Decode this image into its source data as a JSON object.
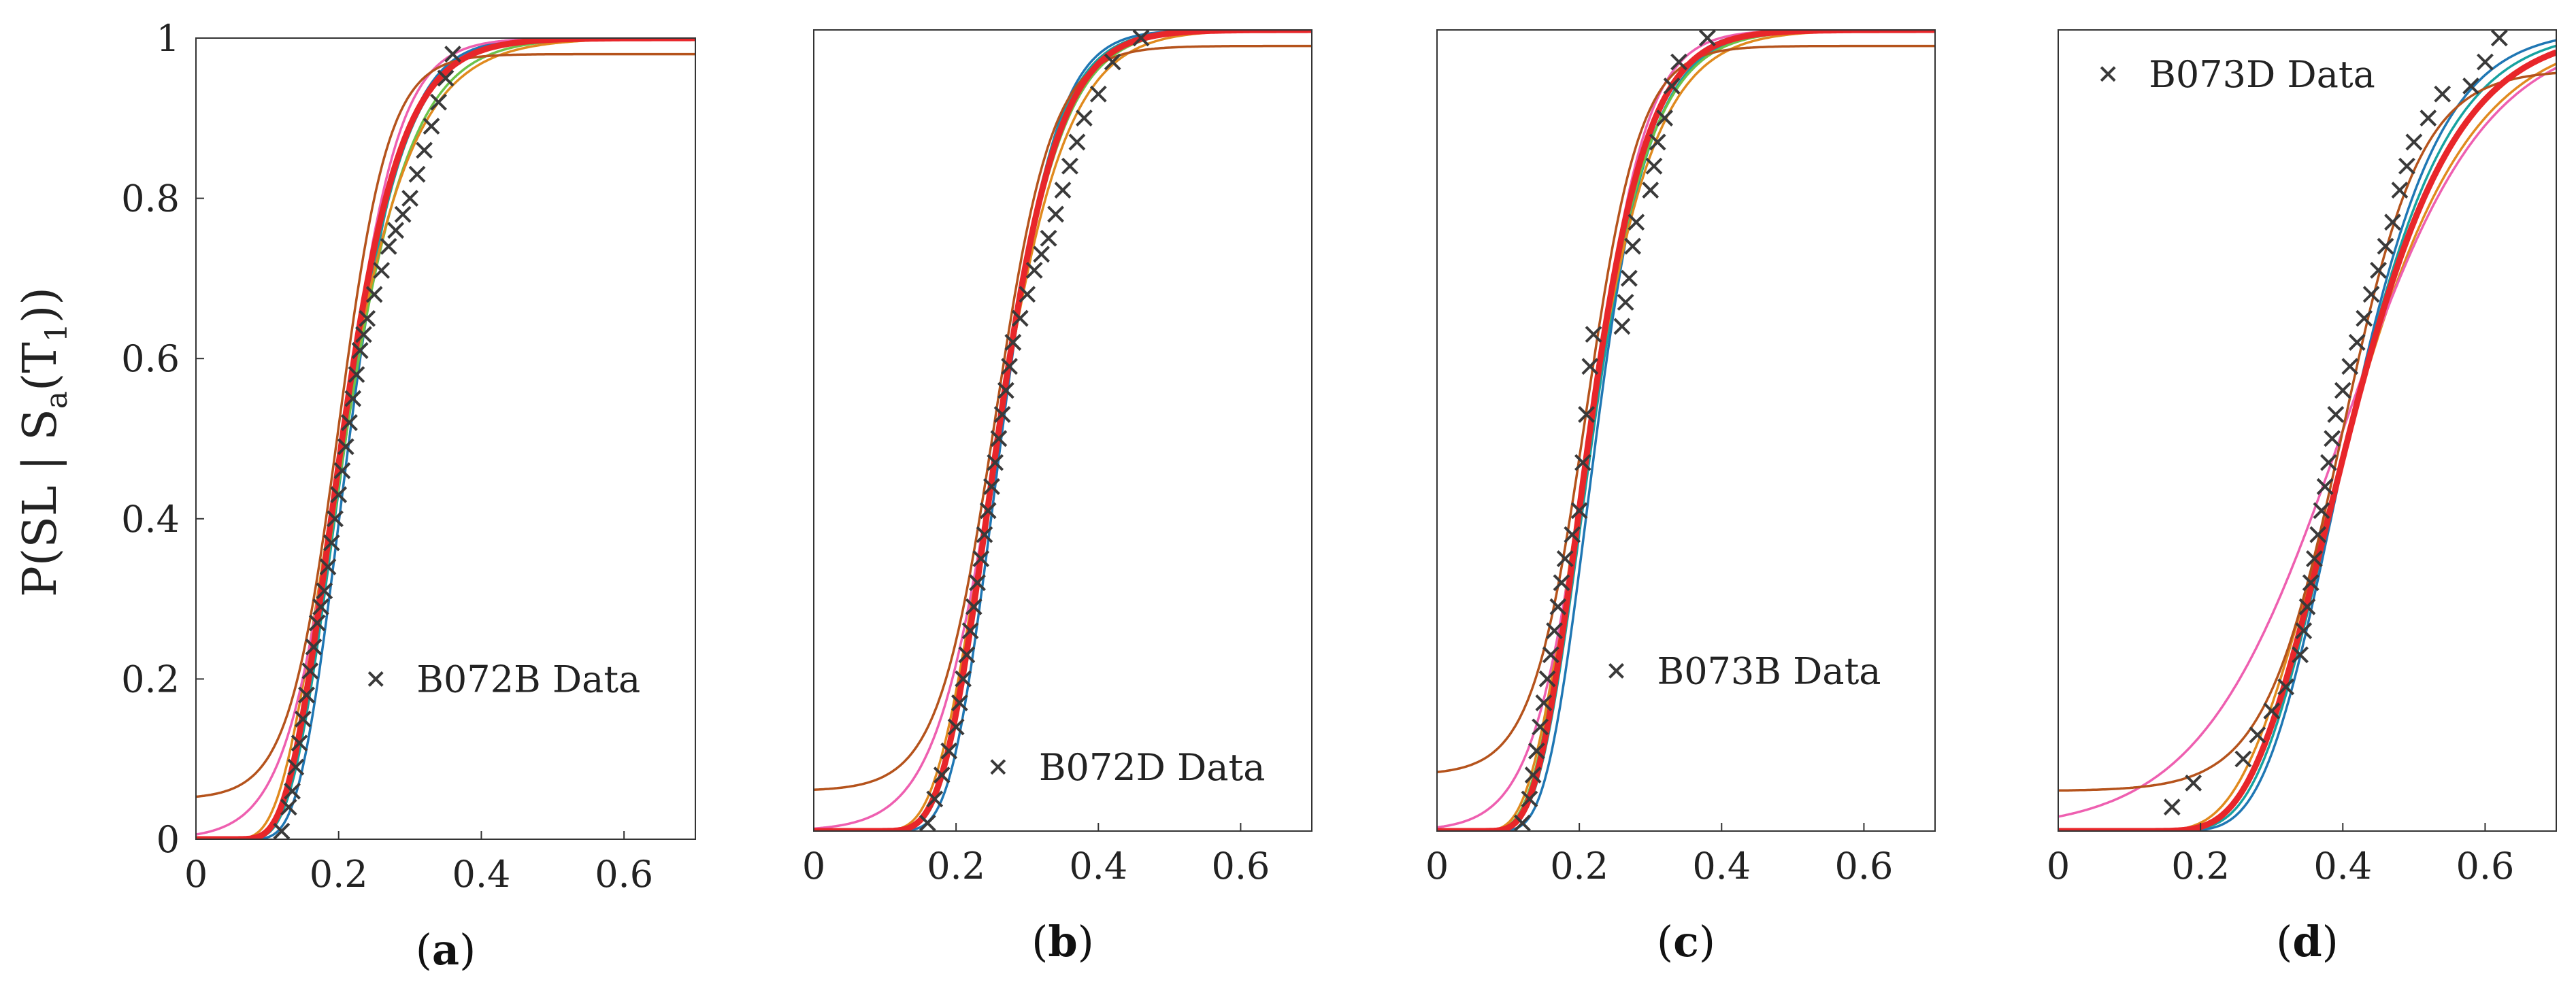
{
  "y_axis_label": "P(SL | S",
  "y_axis_label_sub": "a",
  "y_axis_label_mid": "(T",
  "y_axis_label_sub2": "1",
  "y_axis_label_end": "))",
  "colors": {
    "data_marker": "#3a3a3a",
    "curve_blue": "#1f77b4",
    "curve_teal": "#17a2a0",
    "curve_green": "#6cc24a",
    "curve_orange": "#e08a1e",
    "curve_pink": "#ee5fb0",
    "curve_brown": "#b5531c",
    "curve_red": "#e8262a"
  },
  "chart_data": [
    {
      "panel": "a",
      "panel_label": "(a)",
      "type": "line",
      "legend_label": "B072B Data",
      "legend_position": "center-right",
      "x_ticks": [
        "0",
        "0.2",
        "0.4",
        "0.6"
      ],
      "y_ticks": [
        "0",
        "0.2",
        "0.4",
        "0.6",
        "0.8",
        "1"
      ],
      "xlim": [
        0,
        0.7
      ],
      "ylim": [
        0,
        1
      ],
      "data_points": {
        "x": [
          0.12,
          0.13,
          0.135,
          0.14,
          0.145,
          0.15,
          0.155,
          0.16,
          0.165,
          0.17,
          0.175,
          0.18,
          0.185,
          0.19,
          0.195,
          0.2,
          0.205,
          0.21,
          0.215,
          0.22,
          0.225,
          0.23,
          0.235,
          0.24,
          0.25,
          0.26,
          0.27,
          0.28,
          0.29,
          0.3,
          0.31,
          0.32,
          0.33,
          0.34,
          0.35,
          0.36
        ],
        "y": [
          0.01,
          0.04,
          0.06,
          0.09,
          0.12,
          0.15,
          0.18,
          0.21,
          0.24,
          0.27,
          0.29,
          0.31,
          0.34,
          0.37,
          0.4,
          0.43,
          0.46,
          0.49,
          0.52,
          0.55,
          0.58,
          0.61,
          0.63,
          0.65,
          0.68,
          0.71,
          0.74,
          0.76,
          0.78,
          0.8,
          0.83,
          0.86,
          0.89,
          0.92,
          0.95,
          0.98
        ]
      },
      "fits": [
        {
          "color_key": "curve_blue",
          "kind": "lognormal",
          "median": 0.215,
          "beta": 0.27
        },
        {
          "color_key": "curve_teal",
          "kind": "lognormal",
          "median": 0.21,
          "beta": 0.3
        },
        {
          "color_key": "curve_green",
          "kind": "lognormal",
          "median": 0.21,
          "beta": 0.33
        },
        {
          "color_key": "curve_orange",
          "kind": "lognormal",
          "median": 0.205,
          "beta": 0.36
        },
        {
          "color_key": "curve_pink",
          "kind": "logistic",
          "median": 0.205,
          "scale": 0.04
        },
        {
          "color_key": "curve_brown",
          "kind": "logistic",
          "median": 0.2,
          "scale": 0.035,
          "floor": 0.05,
          "ceil": 0.98
        },
        {
          "color_key": "curve_red",
          "kind": "lognormal",
          "median": 0.205,
          "beta": 0.31,
          "width": 9
        }
      ]
    },
    {
      "panel": "b",
      "panel_label": "(b)",
      "type": "line",
      "legend_label": "B072D Data",
      "legend_position": "bottom-right",
      "x_ticks": [
        "0",
        "0.2",
        "0.4",
        "0.6"
      ],
      "y_ticks": [],
      "xlim": [
        0,
        0.7
      ],
      "ylim": [
        0,
        1
      ],
      "data_points": {
        "x": [
          0.16,
          0.17,
          0.18,
          0.19,
          0.2,
          0.205,
          0.21,
          0.215,
          0.22,
          0.225,
          0.23,
          0.235,
          0.24,
          0.245,
          0.25,
          0.255,
          0.26,
          0.265,
          0.27,
          0.275,
          0.28,
          0.29,
          0.3,
          0.31,
          0.32,
          0.33,
          0.34,
          0.35,
          0.36,
          0.37,
          0.38,
          0.4,
          0.42,
          0.46
        ],
        "y": [
          0.01,
          0.04,
          0.07,
          0.1,
          0.13,
          0.16,
          0.19,
          0.22,
          0.25,
          0.28,
          0.31,
          0.34,
          0.37,
          0.4,
          0.43,
          0.46,
          0.49,
          0.52,
          0.55,
          0.58,
          0.61,
          0.64,
          0.67,
          0.7,
          0.72,
          0.74,
          0.77,
          0.8,
          0.83,
          0.86,
          0.89,
          0.92,
          0.96,
          0.99
        ]
      },
      "fits": [
        {
          "color_key": "curve_blue",
          "kind": "lognormal",
          "median": 0.265,
          "beta": 0.22
        },
        {
          "color_key": "curve_teal",
          "kind": "lognormal",
          "median": 0.26,
          "beta": 0.24
        },
        {
          "color_key": "curve_green",
          "kind": "lognormal",
          "median": 0.26,
          "beta": 0.26
        },
        {
          "color_key": "curve_orange",
          "kind": "lognormal",
          "median": 0.26,
          "beta": 0.28
        },
        {
          "color_key": "curve_pink",
          "kind": "logistic",
          "median": 0.26,
          "scale": 0.045
        },
        {
          "color_key": "curve_brown",
          "kind": "logistic",
          "median": 0.255,
          "scale": 0.04,
          "floor": 0.05,
          "ceil": 0.98
        },
        {
          "color_key": "curve_red",
          "kind": "lognormal",
          "median": 0.26,
          "beta": 0.25,
          "width": 9
        }
      ]
    },
    {
      "panel": "c",
      "panel_label": "(c)",
      "type": "line",
      "legend_label": "B073B Data",
      "legend_position": "center-right",
      "x_ticks": [
        "0",
        "0.2",
        "0.4",
        "0.6"
      ],
      "y_ticks": [],
      "xlim": [
        0,
        0.7
      ],
      "ylim": [
        0,
        1
      ],
      "data_points": {
        "x": [
          0.12,
          0.13,
          0.135,
          0.14,
          0.145,
          0.15,
          0.155,
          0.16,
          0.165,
          0.17,
          0.175,
          0.18,
          0.19,
          0.2,
          0.205,
          0.21,
          0.215,
          0.22,
          0.26,
          0.265,
          0.27,
          0.275,
          0.28,
          0.3,
          0.305,
          0.31,
          0.32,
          0.33,
          0.34,
          0.38
        ],
        "y": [
          0.01,
          0.04,
          0.07,
          0.1,
          0.13,
          0.16,
          0.19,
          0.22,
          0.25,
          0.28,
          0.31,
          0.34,
          0.37,
          0.4,
          0.46,
          0.52,
          0.58,
          0.62,
          0.63,
          0.66,
          0.69,
          0.73,
          0.76,
          0.8,
          0.83,
          0.86,
          0.89,
          0.93,
          0.96,
          0.99
        ]
      },
      "fits": [
        {
          "color_key": "curve_blue",
          "kind": "lognormal",
          "median": 0.225,
          "beta": 0.26
        },
        {
          "color_key": "curve_teal",
          "kind": "lognormal",
          "median": 0.22,
          "beta": 0.29
        },
        {
          "color_key": "curve_green",
          "kind": "lognormal",
          "median": 0.215,
          "beta": 0.31
        },
        {
          "color_key": "curve_orange",
          "kind": "lognormal",
          "median": 0.215,
          "beta": 0.33
        },
        {
          "color_key": "curve_pink",
          "kind": "logistic",
          "median": 0.215,
          "scale": 0.04
        },
        {
          "color_key": "curve_brown",
          "kind": "logistic",
          "median": 0.21,
          "scale": 0.038,
          "floor": 0.07,
          "ceil": 0.98
        },
        {
          "color_key": "curve_red",
          "kind": "lognormal",
          "median": 0.215,
          "beta": 0.29,
          "width": 9
        }
      ]
    },
    {
      "panel": "d",
      "panel_label": "(d)",
      "type": "line",
      "legend_label": "B073D Data",
      "legend_position": "top-left",
      "x_ticks": [
        "0",
        "0.2",
        "0.4",
        "0.6"
      ],
      "y_ticks": [],
      "xlim": [
        0,
        0.7
      ],
      "ylim": [
        0,
        1
      ],
      "data_points": {
        "x": [
          0.16,
          0.19,
          0.26,
          0.28,
          0.3,
          0.32,
          0.34,
          0.345,
          0.35,
          0.355,
          0.36,
          0.365,
          0.37,
          0.375,
          0.38,
          0.385,
          0.39,
          0.4,
          0.41,
          0.42,
          0.43,
          0.44,
          0.45,
          0.46,
          0.47,
          0.48,
          0.49,
          0.5,
          0.52,
          0.54,
          0.58,
          0.6,
          0.62
        ],
        "y": [
          0.03,
          0.06,
          0.09,
          0.12,
          0.15,
          0.18,
          0.22,
          0.25,
          0.28,
          0.31,
          0.34,
          0.37,
          0.4,
          0.43,
          0.46,
          0.49,
          0.52,
          0.55,
          0.58,
          0.61,
          0.64,
          0.67,
          0.7,
          0.73,
          0.76,
          0.8,
          0.83,
          0.86,
          0.89,
          0.92,
          0.93,
          0.96,
          0.99
        ]
      },
      "fits": [
        {
          "color_key": "curve_blue",
          "kind": "lognormal",
          "median": 0.41,
          "beta": 0.24
        },
        {
          "color_key": "curve_teal",
          "kind": "lognormal",
          "median": 0.41,
          "beta": 0.26
        },
        {
          "color_key": "curve_green",
          "kind": "lognormal",
          "median": 0.41,
          "beta": 0.28
        },
        {
          "color_key": "curve_orange",
          "kind": "lognormal",
          "median": 0.41,
          "beta": 0.31
        },
        {
          "color_key": "curve_pink",
          "kind": "logistic",
          "median": 0.4,
          "scale": 0.1
        },
        {
          "color_key": "curve_brown",
          "kind": "logistic",
          "median": 0.4,
          "scale": 0.055,
          "floor": 0.05,
          "ceil": 0.95
        },
        {
          "color_key": "curve_red",
          "kind": "lognormal",
          "median": 0.41,
          "beta": 0.28,
          "width": 9
        }
      ]
    }
  ]
}
